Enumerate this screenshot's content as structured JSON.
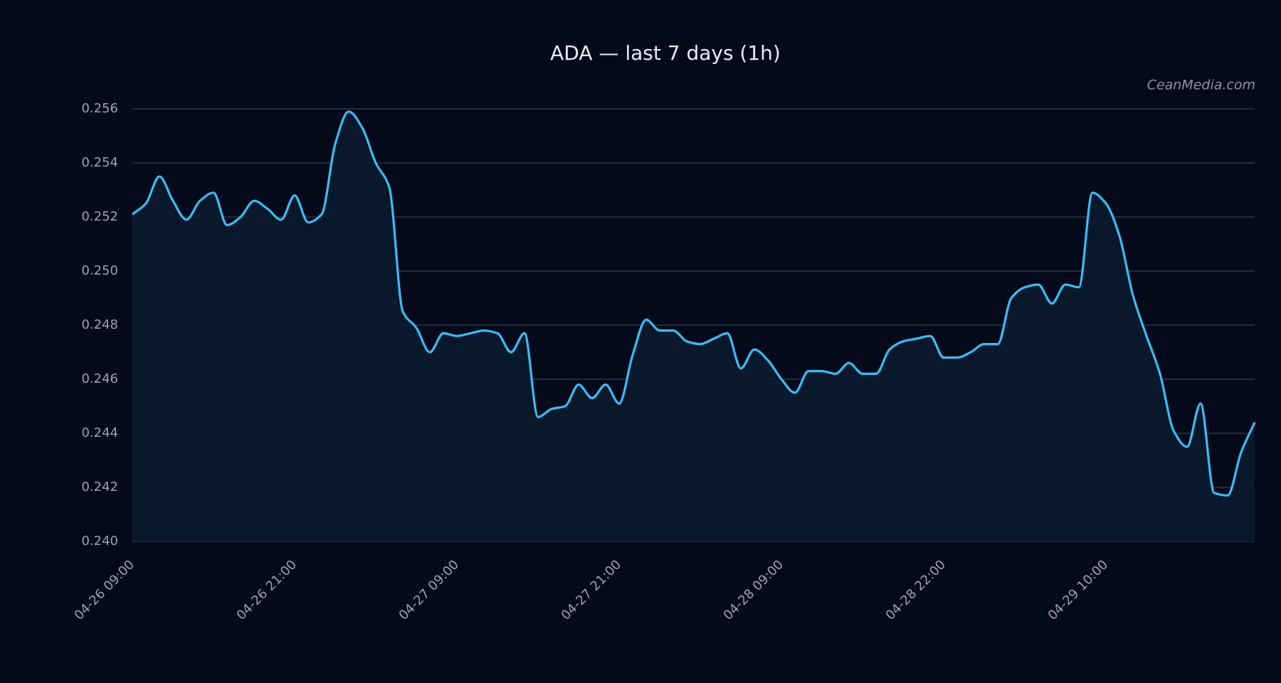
{
  "chart_data": {
    "type": "line",
    "title": "ADA — last 7 days (1h)",
    "watermark": "CeanMedia.com",
    "categories": [
      "04-26 09:00",
      null,
      null,
      null,
      null,
      null,
      null,
      null,
      null,
      null,
      null,
      null,
      "04-26 21:00",
      null,
      null,
      null,
      null,
      null,
      null,
      null,
      null,
      null,
      null,
      null,
      "04-27 09:00",
      null,
      null,
      null,
      null,
      null,
      null,
      null,
      null,
      null,
      null,
      null,
      "04-27 21:00",
      null,
      null,
      null,
      null,
      null,
      null,
      null,
      null,
      null,
      null,
      null,
      "04-28 09:00",
      null,
      null,
      null,
      null,
      null,
      null,
      null,
      null,
      null,
      null,
      null,
      "04-28 22:00",
      null,
      null,
      null,
      null,
      null,
      null,
      null,
      null,
      null,
      null,
      null,
      "04-29 10:00",
      null,
      null,
      null,
      null,
      null,
      null,
      null,
      null,
      null,
      null,
      null
    ],
    "series": [
      {
        "name": "ADA",
        "color": "#38bdf8",
        "values": [
          0.2521,
          0.2525,
          0.2535,
          0.2526,
          0.2519,
          0.2526,
          0.2529,
          0.2517,
          0.252,
          0.2526,
          0.2523,
          0.2519,
          0.2528,
          0.2518,
          0.2521,
          0.2547,
          0.2559,
          0.2553,
          0.254,
          0.2531,
          0.2485,
          0.2479,
          0.247,
          0.2477,
          0.2476,
          0.2477,
          0.2478,
          0.2477,
          0.247,
          0.2477,
          0.2446,
          0.2449,
          0.245,
          0.2458,
          0.2453,
          0.2458,
          0.2451,
          0.2469,
          0.2482,
          0.2478,
          0.2478,
          0.2474,
          0.2473,
          0.2475,
          0.2477,
          0.2464,
          0.2471,
          0.2467,
          0.246,
          0.2455,
          0.2463,
          0.2463,
          0.2462,
          0.2466,
          0.2462,
          0.2462,
          0.2471,
          0.2474,
          0.2475,
          0.2476,
          0.2468,
          0.2468,
          0.247,
          0.2473,
          0.2473,
          0.249,
          0.2494,
          0.2495,
          0.2488,
          0.2495,
          0.2494,
          0.2529,
          0.2525,
          0.2513,
          0.2491,
          0.2476,
          0.2462,
          0.2441,
          0.2435,
          0.2451,
          0.2418,
          0.2417,
          0.2433,
          0.2444
        ]
      }
    ],
    "ylim": [
      0.24,
      0.256
    ],
    "yticks": [
      {
        "value": 0.24,
        "label": "0.240"
      },
      0.242,
      0.244,
      0.246,
      0.248,
      {
        "value": 0.25,
        "label": "0.250"
      },
      0.252,
      0.254,
      0.256
    ],
    "grid": true,
    "area": true
  }
}
